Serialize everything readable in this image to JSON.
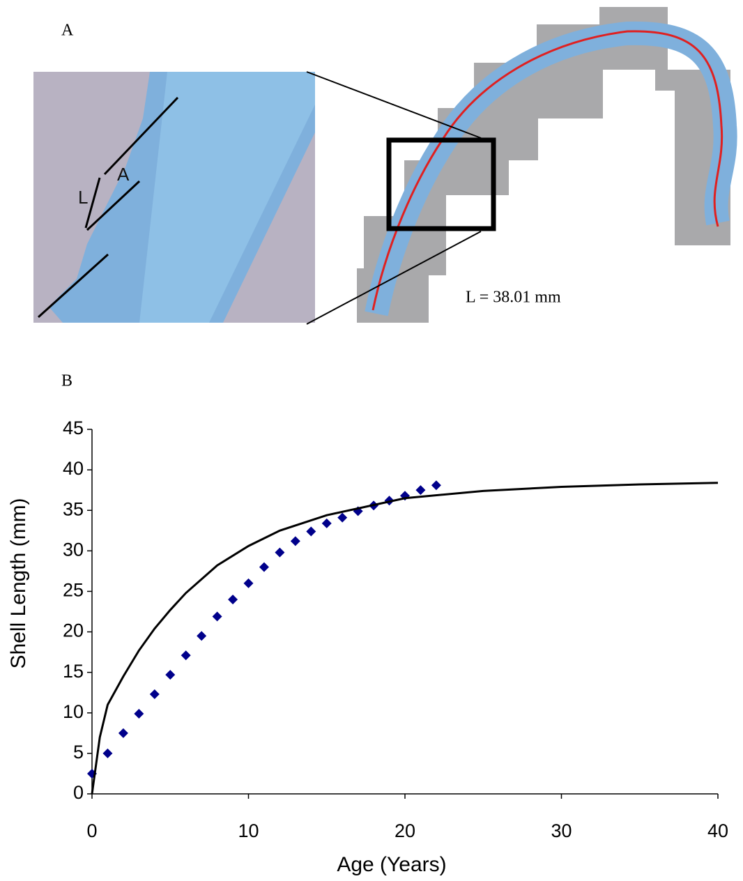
{
  "panels": {
    "a": {
      "label": "A",
      "inset_labels": [
        "L",
        "A"
      ],
      "annotation": "L = 38.01 mm"
    },
    "b": {
      "label": "B"
    }
  },
  "chart_data": {
    "type": "scatter",
    "x_label": "Age (Years)",
    "y_label": "Shell Length  (mm)",
    "xlim": [
      0,
      40
    ],
    "xticks": [
      0,
      10,
      20,
      30,
      40
    ],
    "ylim": [
      0,
      45
    ],
    "yticks": [
      0,
      5,
      10,
      15,
      20,
      25,
      30,
      35,
      40,
      45
    ],
    "grid": false,
    "series": [
      {
        "kind": "markers",
        "color": "#00008b",
        "x": [
          0,
          1,
          2,
          3,
          4,
          5,
          6,
          7,
          8,
          9,
          10,
          11,
          12,
          13,
          14,
          15,
          16,
          17,
          18,
          19,
          20,
          21,
          22
        ],
        "values": [
          2.5,
          5.0,
          7.5,
          9.9,
          12.3,
          14.7,
          17.1,
          19.5,
          21.9,
          24.0,
          26.0,
          28.0,
          29.8,
          31.2,
          32.4,
          33.4,
          34.1,
          34.9,
          35.6,
          36.2,
          36.8,
          37.5,
          38.1
        ]
      },
      {
        "kind": "line",
        "color": "#000000",
        "x": [
          0,
          0.5,
          1,
          2,
          3,
          4,
          5,
          6,
          8,
          10,
          12,
          15,
          20,
          25,
          30,
          35,
          40
        ],
        "values": [
          0,
          7,
          11.0,
          14.5,
          17.7,
          20.4,
          22.7,
          24.8,
          28.2,
          30.6,
          32.5,
          34.4,
          36.5,
          37.4,
          37.9,
          38.2,
          38.4
        ]
      }
    ]
  }
}
